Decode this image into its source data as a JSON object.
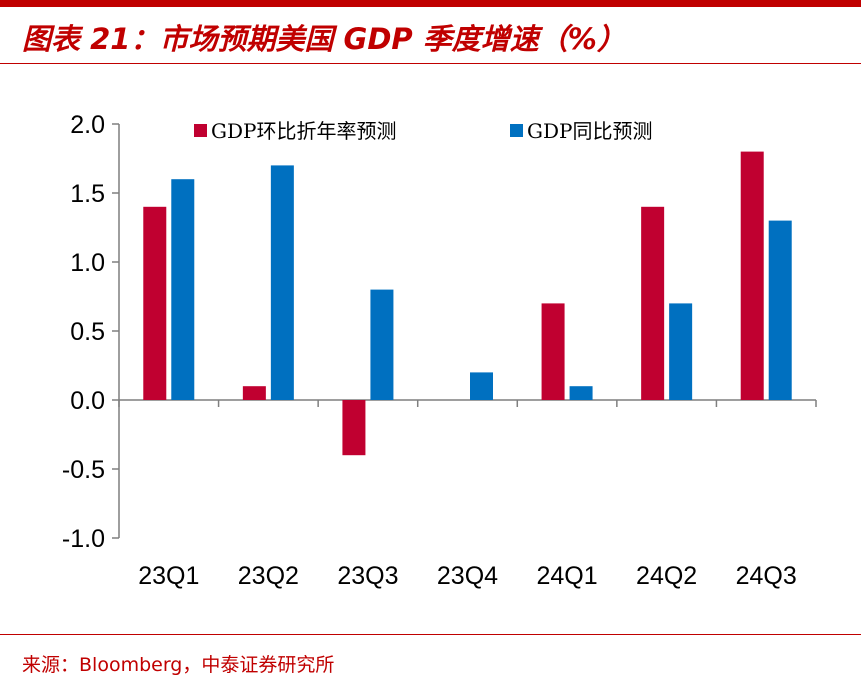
{
  "header": {
    "title": "图表 21：市场预期美国 GDP 季度增速（%）"
  },
  "footer": {
    "source": "来源：Bloomberg，中泰证券研究所"
  },
  "colors": {
    "brand": "#c00000",
    "series_1": "#c00030",
    "series_2": "#0070c0"
  },
  "chart_data": {
    "type": "bar",
    "title": "市场预期美国 GDP 季度增速（%）",
    "xlabel": "",
    "ylabel": "",
    "categories": [
      "23Q1",
      "23Q2",
      "23Q3",
      "23Q4",
      "24Q1",
      "24Q2",
      "24Q3"
    ],
    "series": [
      {
        "name": "GDP环比折年率预测",
        "values": [
          1.4,
          0.1,
          -0.4,
          0.0,
          0.7,
          1.4,
          1.8
        ]
      },
      {
        "name": "GDP同比预测",
        "values": [
          1.6,
          1.7,
          0.8,
          0.2,
          0.1,
          0.7,
          1.3
        ]
      }
    ],
    "ylim": [
      -1.0,
      2.0
    ],
    "yticks": [
      "2.0",
      "1.5",
      "1.0",
      "0.5",
      "0.0",
      "-0.5",
      "-1.0"
    ],
    "ytick_values": [
      2.0,
      1.5,
      1.0,
      0.5,
      0.0,
      -0.5,
      -1.0
    ],
    "grid": false,
    "legend_position": "top"
  }
}
